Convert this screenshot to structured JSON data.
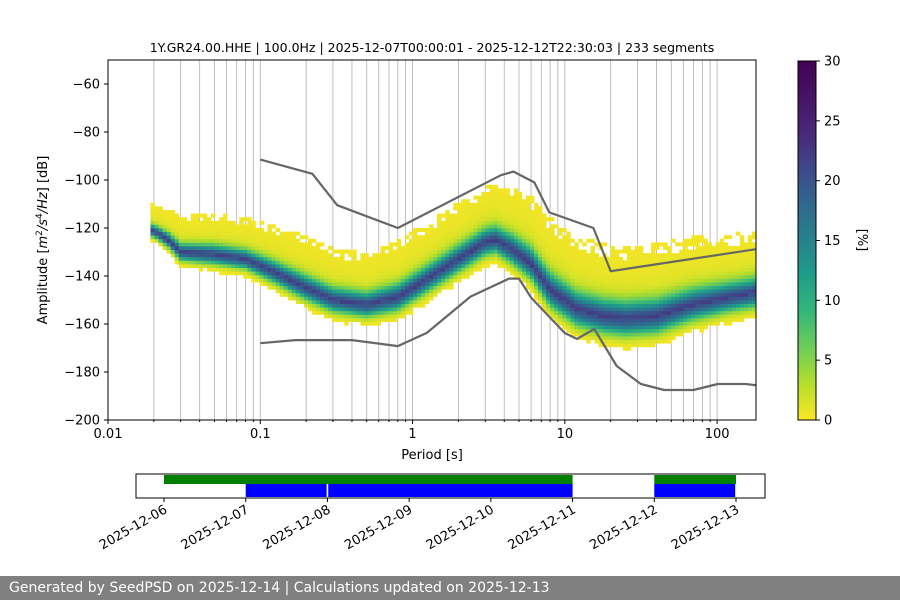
{
  "chart_data": {
    "type": "heatmap",
    "title": "1Y.GR24.00.HHE | 100.0Hz | 2025-12-07T00:00:01 - 2025-12-12T22:30:03 | 233 segments",
    "xlabel": "Period [s]",
    "ylabel": "Amplitude [m²/s⁴/Hz] [dB]",
    "x_scale": "log",
    "xlim": [
      0.01,
      180
    ],
    "ylim": [
      -200,
      -50
    ],
    "x_ticks": [
      0.01,
      0.1,
      1,
      10,
      100
    ],
    "x_tick_labels": [
      "0.01",
      "0.1",
      "1",
      "10",
      "100"
    ],
    "y_ticks": [
      -200,
      -180,
      -160,
      -140,
      -120,
      -100,
      -80,
      -60
    ],
    "y_tick_labels": [
      "−200",
      "−180",
      "−160",
      "−140",
      "−120",
      "−100",
      "−80",
      "−60"
    ],
    "grid": "vertical-minor",
    "colormap": "viridis_r",
    "colorbar": {
      "label": "[%]",
      "range": [
        0,
        30
      ],
      "ticks": [
        0,
        5,
        10,
        15,
        20,
        25,
        30
      ],
      "tick_labels": [
        "0",
        "5",
        "10",
        "15",
        "20",
        "25",
        "30"
      ]
    },
    "psd_mode_curve": {
      "period": [
        0.02,
        0.025,
        0.03,
        0.05,
        0.08,
        0.12,
        0.2,
        0.3,
        0.5,
        0.8,
        1.2,
        2,
        3,
        3.5,
        4.5,
        6,
        8,
        12,
        18,
        25,
        40,
        70,
        120,
        180
      ],
      "db": [
        -122,
        -126,
        -131,
        -132,
        -134,
        -139,
        -146,
        -151,
        -153,
        -150,
        -143,
        -134,
        -127,
        -126,
        -130,
        -136,
        -147,
        -155,
        -158,
        -159,
        -158,
        -153,
        -150,
        -148
      ]
    },
    "psd_spread_db": [
      5,
      6,
      7,
      8,
      8,
      9,
      10,
      10,
      10,
      11,
      11,
      11,
      11,
      11,
      12,
      13,
      14,
      14,
      14,
      14,
      14,
      13,
      12,
      12
    ],
    "noise_models": [
      {
        "name": "NHNM",
        "color": "#666666",
        "period": [
          0.1,
          0.22,
          0.32,
          0.8,
          3.8,
          4.6,
          6.3,
          7.9,
          15.4,
          20,
          354.8
        ],
        "db": [
          -91.5,
          -97.4,
          -110.5,
          -120,
          -98,
          -96.5,
          -101,
          -113.5,
          -120,
          -138,
          -126
        ]
      },
      {
        "name": "NLNM",
        "color": "#666666",
        "period": [
          0.1,
          0.17,
          0.4,
          0.8,
          1.24,
          2.4,
          4.3,
          5,
          6,
          10,
          12,
          15.6,
          21.9,
          31.6,
          45,
          70,
          101,
          154,
          328
        ],
        "db": [
          -168,
          -166.7,
          -166.7,
          -169.2,
          -163.7,
          -148.6,
          -141.1,
          -141.1,
          -149,
          -163.8,
          -166.2,
          -162.1,
          -177.5,
          -185,
          -187.5,
          -187.5,
          -185,
          -185,
          -187.5
        ]
      }
    ],
    "coverage": {
      "date_ticks": [
        "2025-12-06",
        "2025-12-07",
        "2025-12-08",
        "2025-12-09",
        "2025-12-10",
        "2025-12-11",
        "2025-12-12",
        "2025-12-13"
      ],
      "data_availability": [
        {
          "color": "#008000",
          "start_day": 0.0,
          "end_day": 5.0
        },
        {
          "color": "#008000",
          "start_day": 6.0,
          "end_day": 7.0
        }
      ],
      "psd_availability": [
        {
          "color": "#0000ff",
          "start_day": 1.0,
          "end_day": 1.99
        },
        {
          "color": "#0000ff",
          "start_day": 2.01,
          "end_day": 5.0
        },
        {
          "color": "#0000ff",
          "start_day": 6.0,
          "end_day": 6.99
        }
      ]
    }
  },
  "footer": {
    "text": "Generated by SeedPSD on 2025-12-14 | Calculations updated on 2025-12-13"
  }
}
